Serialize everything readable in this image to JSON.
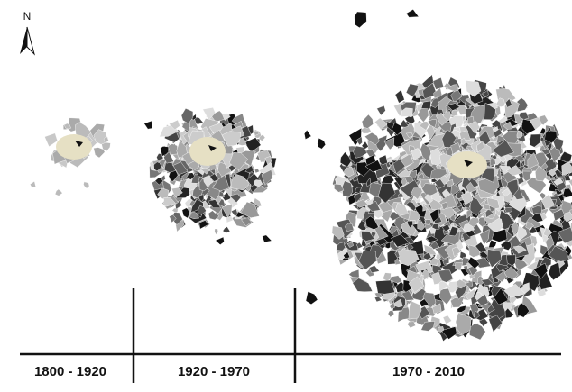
{
  "north_label": "N",
  "periods": [
    "1800 - 1920",
    "1920 - 1970",
    "1970 - 2010"
  ]
}
